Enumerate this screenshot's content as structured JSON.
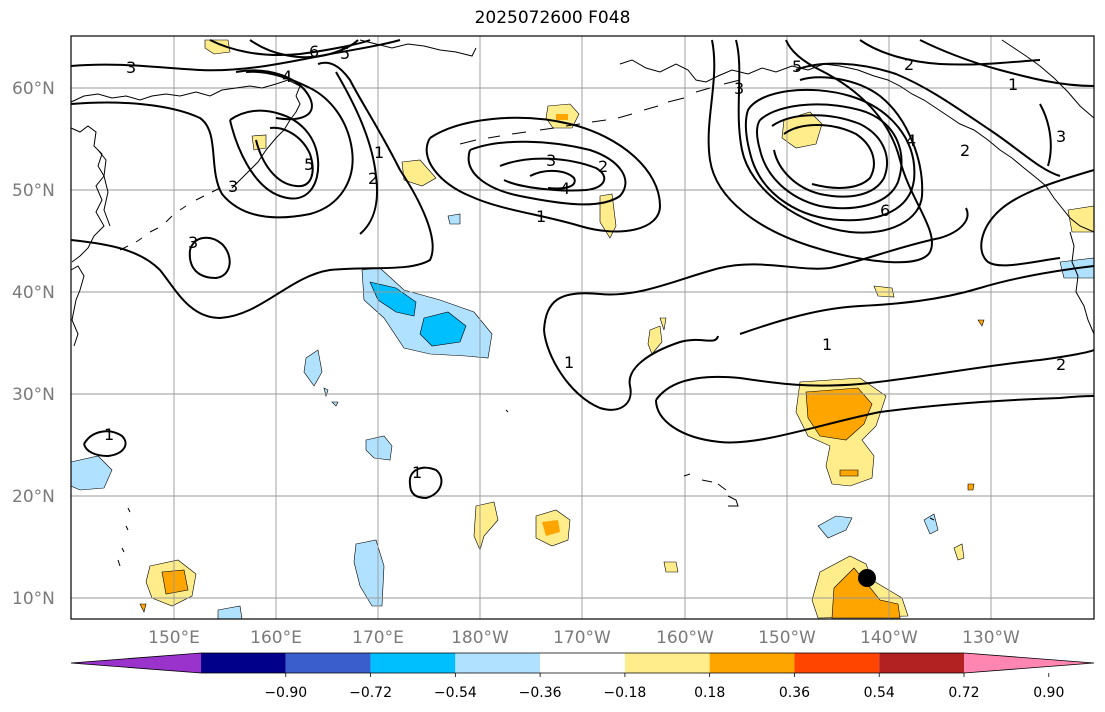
{
  "title": "2025072600 F048",
  "map": {
    "lon_labels": [
      "150°E",
      "160°E",
      "170°E",
      "180°W",
      "170°W",
      "160°W",
      "150°W",
      "140°W",
      "130°W"
    ],
    "lat_labels": [
      "60°N",
      "50°N",
      "40°N",
      "30°N",
      "20°N",
      "10°N"
    ],
    "contour_labels": [
      "3",
      "6",
      "5",
      "4",
      "3",
      "5",
      "1",
      "2",
      "3",
      "3",
      "2",
      "4",
      "1",
      "2",
      "3",
      "5",
      "4",
      "6",
      "1",
      "1",
      "2",
      "1",
      "1",
      "2",
      "1",
      "3"
    ],
    "marker": "storm-center-dot"
  },
  "colorbar": {
    "ticks": [
      "−0.90",
      "−0.72",
      "−0.54",
      "−0.36",
      "−0.18",
      "0.18",
      "0.36",
      "0.54",
      "0.72",
      "0.90"
    ],
    "colors": [
      "#9933cc",
      "#00008b",
      "#3a5fcd",
      "#00bfff",
      "#b0e2ff",
      "#ffffff",
      "#ffec8b",
      "#ffa500",
      "#ff4500",
      "#b22222",
      "#ff86b0"
    ]
  },
  "colors": {
    "contour_line": "#000000",
    "gridline": "#999999",
    "coastline": "#000000"
  }
}
